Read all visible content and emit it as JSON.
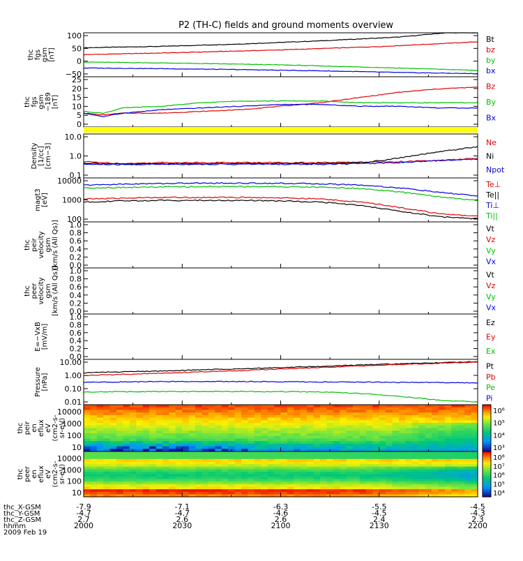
{
  "title": "P2 (TH-C) fields and ground moments overview",
  "colors": {
    "black": "#000000",
    "red": "#e00000",
    "green": "#00c000",
    "blue": "#0000e0",
    "yellow": "#ffff00"
  },
  "chart_data": [
    {
      "type": "line",
      "ylabel": [
        "thc",
        "fgs",
        "gsm",
        "[nT]"
      ],
      "y_ticks": [
        "100",
        "50",
        "0",
        "−50"
      ],
      "ylim": [
        -75,
        110
      ],
      "legend": [
        "Bt",
        "bz",
        "by",
        "bx"
      ],
      "series": [
        {
          "name": "Bt",
          "color": "black",
          "x": [
            0,
            0.2,
            0.4,
            0.6,
            0.8,
            0.92,
            1.0
          ],
          "y": [
            47,
            53,
            63,
            76,
            92,
            110,
            110
          ]
        },
        {
          "name": "bz",
          "color": "red",
          "x": [
            0,
            0.25,
            0.5,
            0.75,
            1.0
          ],
          "y": [
            18,
            27,
            38,
            52,
            72
          ]
        },
        {
          "name": "by",
          "color": "green",
          "x": [
            0,
            0.25,
            0.5,
            0.75,
            1.0
          ],
          "y": [
            -13,
            -18,
            -25,
            -36,
            -48
          ]
        },
        {
          "name": "bx",
          "color": "blue",
          "x": [
            0,
            0.2,
            0.4,
            0.6,
            0.8,
            1.0
          ],
          "y": [
            -38,
            -41,
            -45,
            -50,
            -57,
            -62
          ]
        }
      ]
    },
    {
      "type": "line",
      "ylabel": [
        "thc",
        "fgs",
        "gsm",
        "−189",
        "[nT]"
      ],
      "y_ticks": [
        "25",
        "20",
        "15",
        "10",
        "5",
        "0"
      ],
      "ylim": [
        -2,
        27
      ],
      "legend": [
        "Bz",
        "By",
        "Bx"
      ],
      "series": [
        {
          "name": "Bz",
          "color": "red",
          "x": [
            0,
            0.05,
            0.1,
            0.2,
            0.3,
            0.4,
            0.5,
            0.6,
            0.7,
            0.8,
            0.9,
            1.0
          ],
          "y": [
            6,
            5,
            6,
            6,
            7,
            8,
            10,
            12,
            15,
            18,
            20,
            21
          ]
        },
        {
          "name": "By",
          "color": "green",
          "x": [
            0,
            0.05,
            0.1,
            0.2,
            0.3,
            0.4,
            0.5,
            0.6,
            0.7,
            0.8,
            0.9,
            1.0
          ],
          "y": [
            7,
            6,
            9,
            10,
            12,
            13,
            13,
            13,
            12,
            12,
            12,
            12
          ]
        },
        {
          "name": "Bx",
          "color": "blue",
          "x": [
            0,
            0.05,
            0.1,
            0.2,
            0.3,
            0.4,
            0.5,
            0.6,
            0.7,
            0.8,
            0.9,
            1.0
          ],
          "y": [
            6,
            4,
            6,
            8,
            9,
            10,
            11,
            11,
            10,
            10,
            9,
            9
          ]
        }
      ]
    },
    {
      "type": "line",
      "ylabel": [
        "Density",
        "[1/cc]",
        "[cm−3]"
      ],
      "y_ticks": [
        "10.0",
        "1.0",
        "0.1"
      ],
      "log": true,
      "ylim": [
        0.1,
        10
      ],
      "legend": [
        "Ne",
        "Ni",
        "Npot"
      ],
      "series": [
        {
          "name": "Ne",
          "color": "red",
          "x": [
            0,
            0.1,
            0.2,
            0.3,
            0.4,
            0.5,
            0.6,
            0.7,
            0.8,
            0.9,
            1.0
          ],
          "y": [
            0.55,
            0.45,
            0.5,
            0.5,
            0.5,
            0.5,
            0.5,
            0.52,
            0.55,
            0.62,
            0.78
          ]
        },
        {
          "name": "Ni",
          "color": "black",
          "x": [
            0,
            0.1,
            0.2,
            0.3,
            0.4,
            0.5,
            0.6,
            0.7,
            0.75,
            0.8,
            0.85,
            0.9,
            0.95,
            1.0
          ],
          "y": [
            0.48,
            0.42,
            0.45,
            0.45,
            0.45,
            0.45,
            0.45,
            0.5,
            0.6,
            0.8,
            1.1,
            1.5,
            2.0,
            2.6
          ]
        },
        {
          "name": "Npot",
          "color": "blue",
          "x": [
            0,
            0.1,
            0.2,
            0.3,
            0.4,
            0.5,
            0.6,
            0.7,
            0.8,
            0.9,
            1.0
          ],
          "y": [
            0.42,
            0.4,
            0.42,
            0.42,
            0.42,
            0.42,
            0.42,
            0.45,
            0.5,
            0.62,
            0.72
          ]
        }
      ]
    },
    {
      "type": "line",
      "ylabel": [
        "magt3",
        "[eV]"
      ],
      "y_ticks": [
        "10000",
        "1000",
        "100"
      ],
      "log": true,
      "ylim": [
        100,
        10000
      ],
      "legend": [
        "Te⊥",
        "Te||",
        "Ti⊥",
        "Ti||"
      ],
      "legend_colors": [
        "red",
        "black",
        "blue",
        "green"
      ],
      "series": [
        {
          "name": "Ti⊥",
          "color": "blue",
          "x": [
            0,
            0.1,
            0.2,
            0.3,
            0.4,
            0.5,
            0.6,
            0.7,
            0.8,
            0.9,
            1.0
          ],
          "y": [
            4700,
            5200,
            5600,
            5800,
            5800,
            5700,
            5400,
            4800,
            3500,
            2200,
            1500
          ]
        },
        {
          "name": "Ti||",
          "color": "green",
          "x": [
            0,
            0.1,
            0.2,
            0.3,
            0.4,
            0.5,
            0.6,
            0.7,
            0.8,
            0.9,
            1.0
          ],
          "y": [
            3500,
            3700,
            3900,
            4000,
            4100,
            4000,
            3800,
            3300,
            2300,
            1400,
            900
          ]
        },
        {
          "name": "Te⊥",
          "color": "red",
          "x": [
            0,
            0.1,
            0.2,
            0.3,
            0.4,
            0.5,
            0.6,
            0.7,
            0.8,
            0.9,
            1.0
          ],
          "y": [
            1100,
            1200,
            1300,
            1300,
            1300,
            1250,
            1100,
            800,
            450,
            230,
            180
          ]
        },
        {
          "name": "Te||",
          "color": "black",
          "x": [
            0,
            0.1,
            0.2,
            0.3,
            0.4,
            0.5,
            0.6,
            0.7,
            0.8,
            0.9,
            1.0
          ],
          "y": [
            800,
            900,
            950,
            950,
            950,
            900,
            800,
            550,
            300,
            170,
            140
          ]
        }
      ]
    },
    {
      "type": "line",
      "ylabel": [
        "thc",
        "peir",
        "velocity",
        "gsm",
        "[km/s (All Qs)]"
      ],
      "y_ticks": [
        "1.0",
        "0.8",
        "0.6",
        "0.4",
        "0.2",
        "0.0"
      ],
      "ylim": [
        0,
        1
      ],
      "legend": [
        "Vt",
        "Vz",
        "Vy",
        "Vx"
      ],
      "series": []
    },
    {
      "type": "line",
      "ylabel": [
        "thc",
        "peer",
        "velocity",
        "gsm",
        "[km/s (All Qs)]"
      ],
      "y_ticks": [
        "1.0",
        "0.8",
        "0.6",
        "0.4",
        "0.2",
        "0.0"
      ],
      "ylim": [
        0,
        1
      ],
      "legend": [
        "Vt",
        "Vz",
        "Vy",
        "Vx"
      ],
      "series": []
    },
    {
      "type": "line",
      "ylabel": [
        "E=−VxB",
        "[mV/m]"
      ],
      "y_ticks": [
        "1.0",
        "0.8",
        "0.6",
        "0.4",
        "0.2",
        "0.0"
      ],
      "ylim": [
        0,
        1
      ],
      "legend": [
        "Ez",
        "Ey",
        "Ex"
      ],
      "series": []
    },
    {
      "type": "line",
      "ylabel": [
        "Pressure",
        "[nPa]"
      ],
      "y_ticks": [
        "10.00",
        "1.00",
        "0.10",
        "0.01"
      ],
      "log": true,
      "ylim": [
        0.01,
        10
      ],
      "legend": [
        "Pt",
        "Pb",
        "Pe",
        "Pi"
      ],
      "series": [
        {
          "name": "Pt",
          "color": "black",
          "x": [
            0,
            0.2,
            0.4,
            0.6,
            0.8,
            1.0
          ],
          "y": [
            1.3,
            1.7,
            2.4,
            3.4,
            5.0,
            7.0
          ]
        },
        {
          "name": "Pb",
          "color": "red",
          "x": [
            0,
            0.2,
            0.4,
            0.6,
            0.8,
            1.0
          ],
          "y": [
            0.85,
            1.2,
            1.8,
            2.8,
            4.5,
            6.5
          ]
        },
        {
          "name": "Pi",
          "color": "blue",
          "x": [
            0,
            0.2,
            0.4,
            0.6,
            0.8,
            1.0
          ],
          "y": [
            0.3,
            0.34,
            0.34,
            0.32,
            0.3,
            0.28
          ]
        },
        {
          "name": "Pe",
          "color": "green",
          "x": [
            0,
            0.2,
            0.4,
            0.6,
            0.7,
            0.8,
            0.9,
            1.0
          ],
          "y": [
            0.07,
            0.075,
            0.075,
            0.07,
            0.055,
            0.035,
            0.02,
            0.015
          ]
        }
      ]
    },
    {
      "type": "heatmap",
      "ylabel": [
        "thc",
        "peir",
        "en",
        "eflux",
        "eV",
        "(cm2-s-",
        "sr-eV)"
      ],
      "y_ticks": [
        "10000",
        "1000",
        "100",
        "10"
      ],
      "colorbar_labels": [
        "10⁶",
        "10⁵",
        "10⁴",
        "10³"
      ],
      "variant": "ion"
    },
    {
      "type": "heatmap",
      "ylabel": [
        "thc",
        "peer",
        "en",
        "eflux",
        "eV",
        "(cm2-s-",
        "sr-eV)"
      ],
      "y_ticks": [
        "10000",
        "1000",
        "100",
        "10"
      ],
      "colorbar_labels": [
        "10⁸",
        "10⁷",
        "10⁶",
        "10⁵",
        "10⁴"
      ],
      "variant": "electron"
    }
  ],
  "x_axis": {
    "row_labels": [
      "thc_X-GSM",
      "thc_Y-GSM",
      "thc_Z-GSM",
      "hhmm",
      "2009 Feb 19"
    ],
    "columns": [
      {
        "x": "-7.9",
        "y": "-4.7",
        "z": "2.7",
        "t": "2000"
      },
      {
        "x": "-7.1",
        "y": "-4.7",
        "z": "2.6",
        "t": "2030"
      },
      {
        "x": "-6.3",
        "y": "-4.6",
        "z": "2.6",
        "t": "2100"
      },
      {
        "x": "-5.5",
        "y": "-4.5",
        "z": "2.4",
        "t": "2130"
      },
      {
        "x": "-4.5",
        "y": "-4.3",
        "z": "2.3",
        "t": "2200"
      }
    ]
  }
}
